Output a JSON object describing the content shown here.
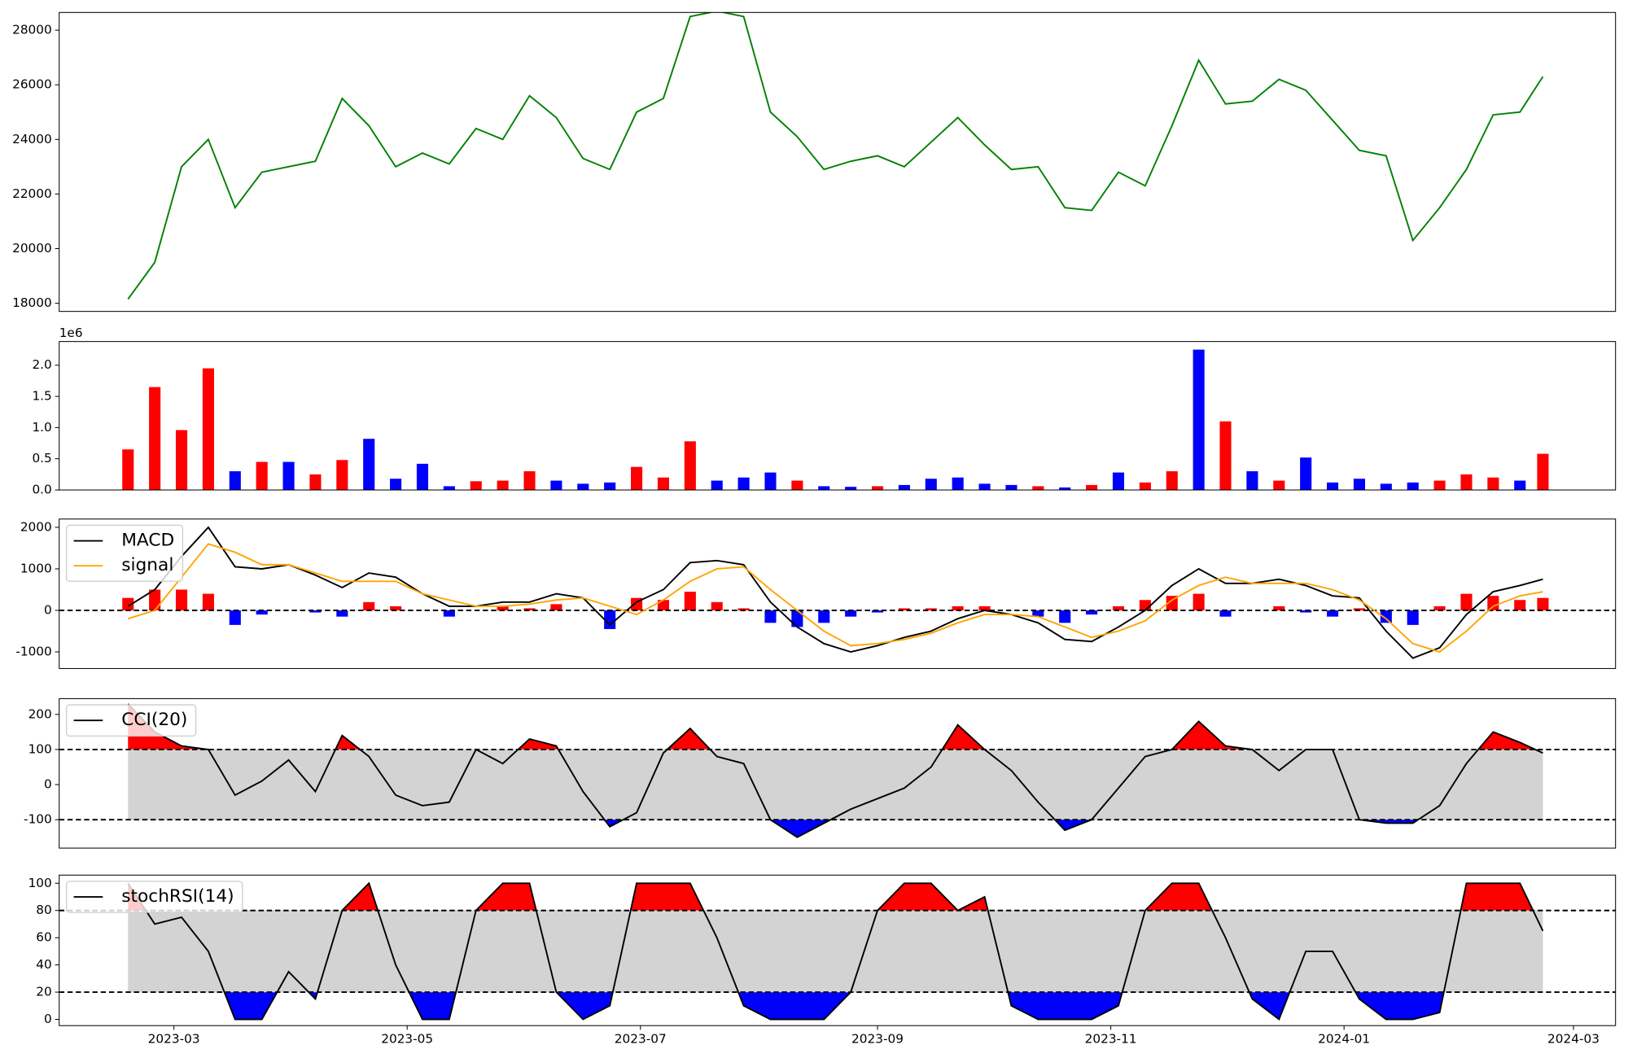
{
  "chart_data": [
    {
      "type": "line",
      "x": [
        47,
        54,
        61,
        68,
        75,
        82,
        89,
        96,
        103,
        110,
        117,
        124,
        131,
        138,
        145,
        152,
        159,
        166,
        173,
        180,
        187,
        194,
        201,
        208,
        215,
        222,
        229,
        236,
        243,
        250,
        257,
        264,
        271,
        278,
        285,
        292,
        299,
        306,
        313,
        320,
        327,
        334,
        341,
        348,
        355,
        362,
        369,
        376,
        383,
        390,
        397,
        404,
        411,
        417
      ],
      "xlim": [
        29,
        436
      ],
      "series": [
        {
          "color": "green",
          "values": [
            18150,
            19500,
            23000,
            24000,
            21500,
            22800,
            23000,
            23200,
            25500,
            24500,
            23000,
            23500,
            23100,
            24400,
            24000,
            25600,
            24800,
            23300,
            22900,
            25000,
            25500,
            28500,
            28700,
            28500,
            25000,
            24100,
            22900,
            23200,
            23400,
            23000,
            23900,
            24800,
            23800,
            22900,
            23000,
            21500,
            21400,
            22800,
            22300,
            24500,
            26900,
            25300,
            25400,
            26200,
            25800,
            24700,
            23600,
            23400,
            20300,
            21500,
            22900,
            24900,
            25000,
            26300
          ]
        }
      ],
      "ylim": [
        17700,
        28650
      ],
      "yticks": [
        18000,
        20000,
        22000,
        24000,
        26000,
        28000
      ]
    },
    {
      "type": "bar",
      "x": [
        47,
        54,
        61,
        68,
        75,
        82,
        89,
        96,
        103,
        110,
        117,
        124,
        131,
        138,
        145,
        152,
        159,
        166,
        173,
        180,
        187,
        194,
        201,
        208,
        215,
        222,
        229,
        236,
        243,
        250,
        257,
        264,
        271,
        278,
        285,
        292,
        299,
        306,
        313,
        320,
        327,
        334,
        341,
        348,
        355,
        362,
        369,
        376,
        383,
        390,
        397,
        404,
        411,
        417
      ],
      "xlim": [
        29,
        436
      ],
      "values": [
        650000,
        1650000,
        960000,
        1950000,
        300000,
        450000,
        450000,
        250000,
        480000,
        820000,
        180000,
        420000,
        60000,
        140000,
        150000,
        300000,
        150000,
        100000,
        120000,
        370000,
        200000,
        780000,
        150000,
        200000,
        280000,
        150000,
        60000,
        50000,
        60000,
        80000,
        180000,
        200000,
        100000,
        80000,
        60000,
        40000,
        80000,
        280000,
        120000,
        300000,
        2250000,
        1100000,
        300000,
        150000,
        520000,
        120000,
        180000,
        100000,
        120000,
        150000,
        250000,
        200000,
        150000,
        580000
      ],
      "colors": [
        "red",
        "red",
        "red",
        "red",
        "blue",
        "red",
        "blue",
        "red",
        "red",
        "blue",
        "blue",
        "blue",
        "blue",
        "red",
        "red",
        "red",
        "blue",
        "blue",
        "blue",
        "red",
        "red",
        "red",
        "blue",
        "blue",
        "blue",
        "red",
        "blue",
        "blue",
        "red",
        "blue",
        "blue",
        "blue",
        "blue",
        "blue",
        "red",
        "blue",
        "red",
        "blue",
        "red",
        "red",
        "blue",
        "red",
        "blue",
        "red",
        "blue",
        "blue",
        "blue",
        "blue",
        "blue",
        "red",
        "red",
        "red",
        "blue",
        "red"
      ],
      "ylim": [
        0,
        2380000
      ],
      "yticks": [
        {
          "value": 0,
          "label": "0.0"
        },
        {
          "value": 500000,
          "label": "0.5"
        },
        {
          "value": 1000000,
          "label": "1.0"
        },
        {
          "value": 1500000,
          "label": "1.5"
        },
        {
          "value": 2000000,
          "label": "2.0"
        }
      ],
      "offset_label": "1e6"
    },
    {
      "type": "line",
      "x": [
        47,
        54,
        61,
        68,
        75,
        82,
        89,
        96,
        103,
        110,
        117,
        124,
        131,
        138,
        145,
        152,
        159,
        166,
        173,
        180,
        187,
        194,
        201,
        208,
        215,
        222,
        229,
        236,
        243,
        250,
        257,
        264,
        271,
        278,
        285,
        292,
        299,
        306,
        313,
        320,
        327,
        334,
        341,
        348,
        355,
        362,
        369,
        376,
        383,
        390,
        397,
        404,
        411,
        417
      ],
      "xlim": [
        29,
        436
      ],
      "series": [
        {
          "name": "MACD",
          "color": "black",
          "values": [
            100,
            500,
            1300,
            2000,
            1050,
            1000,
            1100,
            850,
            550,
            900,
            800,
            400,
            100,
            100,
            200,
            200,
            400,
            300,
            -350,
            200,
            500,
            1150,
            1200,
            1100,
            200,
            -400,
            -800,
            -1000,
            -850,
            -650,
            -500,
            -200,
            0,
            -100,
            -300,
            -700,
            -750,
            -400,
            0,
            600,
            1000,
            650,
            650,
            750,
            600,
            350,
            300,
            -500,
            -1150,
            -900,
            -100,
            450,
            600,
            750
          ]
        },
        {
          "name": "signal",
          "color": "orange",
          "values": [
            -200,
            0,
            800,
            1600,
            1400,
            1100,
            1100,
            900,
            700,
            700,
            700,
            400,
            250,
            100,
            100,
            150,
            250,
            300,
            100,
            -100,
            250,
            700,
            1000,
            1050,
            500,
            0,
            -500,
            -850,
            -800,
            -700,
            -550,
            -300,
            -100,
            -100,
            -150,
            -400,
            -650,
            -500,
            -250,
            250,
            600,
            800,
            650,
            650,
            650,
            500,
            250,
            -200,
            -800,
            -1000,
            -500,
            100,
            350,
            450
          ]
        }
      ],
      "histogram": {
        "values": [
          300,
          500,
          500,
          400,
          -350,
          -100,
          0,
          -50,
          -150,
          200,
          100,
          0,
          -150,
          0,
          100,
          50,
          150,
          0,
          -450,
          300,
          250,
          450,
          200,
          50,
          -300,
          -400,
          -300,
          -150,
          -50,
          50,
          50,
          100,
          100,
          0,
          -150,
          -300,
          -100,
          100,
          250,
          350,
          400,
          -150,
          0,
          100,
          -50,
          -150,
          50,
          -300,
          -350,
          100,
          400,
          350,
          250,
          300
        ],
        "pos_color": "red",
        "neg_color": "blue"
      },
      "hlines": [
        0
      ],
      "ylim": [
        -1400,
        2200
      ],
      "yticks": [
        -1000,
        0,
        1000,
        2000
      ],
      "legend": "upper left"
    },
    {
      "type": "band",
      "x": [
        47,
        54,
        61,
        68,
        75,
        82,
        89,
        96,
        103,
        110,
        117,
        124,
        131,
        138,
        145,
        152,
        159,
        166,
        173,
        180,
        187,
        194,
        201,
        208,
        215,
        222,
        229,
        236,
        243,
        250,
        257,
        264,
        271,
        278,
        285,
        292,
        299,
        306,
        313,
        320,
        327,
        334,
        341,
        348,
        355,
        362,
        369,
        376,
        383,
        390,
        397,
        404,
        411,
        417
      ],
      "xlim": [
        29,
        436
      ],
      "series": [
        {
          "name": "CCI(20)",
          "color": "black",
          "values": [
            230,
            150,
            110,
            100,
            -30,
            10,
            70,
            -20,
            140,
            80,
            -30,
            -60,
            -50,
            100,
            60,
            130,
            110,
            -20,
            -120,
            -80,
            90,
            160,
            80,
            60,
            -100,
            -150,
            -110,
            -70,
            -40,
            -10,
            50,
            170,
            100,
            40,
            -50,
            -130,
            -100,
            -10,
            80,
            100,
            180,
            110,
            100,
            40,
            100,
            100,
            -100,
            -110,
            -110,
            -60,
            60,
            150,
            120,
            90
          ]
        }
      ],
      "hlines": [
        100,
        -100
      ],
      "band_color": "lightgray",
      "above_color": "red",
      "below_color": "blue",
      "ylim": [
        -181,
        245
      ],
      "yticks": [
        -100,
        0,
        100,
        200
      ],
      "legend": "upper left"
    },
    {
      "type": "band",
      "x": [
        47,
        54,
        61,
        68,
        75,
        82,
        89,
        96,
        103,
        110,
        117,
        124,
        131,
        138,
        145,
        152,
        159,
        166,
        173,
        180,
        187,
        194,
        201,
        208,
        215,
        222,
        229,
        236,
        243,
        250,
        257,
        264,
        271,
        278,
        285,
        292,
        299,
        306,
        313,
        320,
        327,
        334,
        341,
        348,
        355,
        362,
        369,
        376,
        383,
        390,
        397,
        404,
        411,
        417
      ],
      "xlim": [
        29,
        436
      ],
      "series": [
        {
          "name": "stochRSI(14)",
          "color": "black",
          "values": [
            100,
            70,
            75,
            50,
            0,
            0,
            35,
            15,
            80,
            100,
            40,
            0,
            0,
            80,
            100,
            100,
            20,
            0,
            10,
            100,
            100,
            100,
            60,
            10,
            0,
            0,
            0,
            20,
            80,
            100,
            100,
            80,
            90,
            10,
            0,
            0,
            0,
            10,
            80,
            100,
            100,
            60,
            15,
            0,
            50,
            50,
            15,
            0,
            0,
            5,
            100,
            100,
            100,
            65
          ]
        }
      ],
      "hlines": [
        80,
        20
      ],
      "band_color": "lightgray",
      "above_color": "red",
      "below_color": "blue",
      "ylim": [
        -4.6,
        106
      ],
      "yticks": [
        0,
        20,
        40,
        60,
        80,
        100
      ],
      "xticks": [
        {
          "value": 59,
          "label": "2023-03"
        },
        {
          "value": 120,
          "label": "2023-05"
        },
        {
          "value": 181,
          "label": "2023-07"
        },
        {
          "value": 243,
          "label": "2023-09"
        },
        {
          "value": 304,
          "label": "2023-11"
        },
        {
          "value": 365,
          "label": "2024-01"
        },
        {
          "value": 425,
          "label": "2024-03"
        }
      ],
      "legend": "upper left"
    }
  ]
}
